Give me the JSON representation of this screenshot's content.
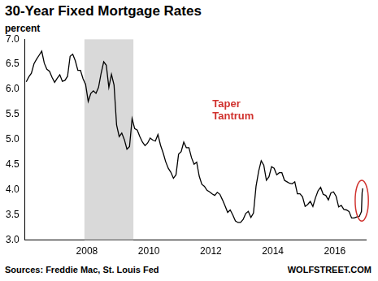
{
  "chart_data": {
    "type": "line",
    "title": "30-Year Fixed Mortgage Rates",
    "y_label": "percent",
    "source": "Sources: Freddie Mac, St. Louis Fed",
    "credit": "WOLFSTREET.COM",
    "annotations": [
      {
        "text": "Taper Tantrum"
      }
    ],
    "recession": [
      2007.92,
      2009.5
    ],
    "x": [
      2006.042,
      2006.125,
      2006.208,
      2006.292,
      2006.375,
      2006.458,
      2006.542,
      2006.625,
      2006.708,
      2006.792,
      2006.875,
      2006.958,
      2007.042,
      2007.125,
      2007.208,
      2007.292,
      2007.375,
      2007.458,
      2007.542,
      2007.625,
      2007.708,
      2007.792,
      2007.875,
      2007.958,
      2008.042,
      2008.125,
      2008.208,
      2008.292,
      2008.375,
      2008.458,
      2008.542,
      2008.625,
      2008.708,
      2008.792,
      2008.875,
      2008.958,
      2009.042,
      2009.125,
      2009.208,
      2009.292,
      2009.375,
      2009.458,
      2009.542,
      2009.625,
      2009.708,
      2009.792,
      2009.875,
      2009.958,
      2010.042,
      2010.125,
      2010.208,
      2010.292,
      2010.375,
      2010.458,
      2010.542,
      2010.625,
      2010.708,
      2010.792,
      2010.875,
      2010.958,
      2011.042,
      2011.125,
      2011.208,
      2011.292,
      2011.375,
      2011.458,
      2011.542,
      2011.625,
      2011.708,
      2011.792,
      2011.875,
      2011.958,
      2012.042,
      2012.125,
      2012.208,
      2012.292,
      2012.375,
      2012.458,
      2012.542,
      2012.625,
      2012.708,
      2012.792,
      2012.875,
      2012.958,
      2013.042,
      2013.125,
      2013.208,
      2013.292,
      2013.375,
      2013.458,
      2013.542,
      2013.625,
      2013.708,
      2013.792,
      2013.875,
      2013.958,
      2014.042,
      2014.125,
      2014.208,
      2014.292,
      2014.375,
      2014.458,
      2014.542,
      2014.625,
      2014.708,
      2014.792,
      2014.875,
      2014.958,
      2015.042,
      2015.125,
      2015.208,
      2015.292,
      2015.375,
      2015.458,
      2015.542,
      2015.625,
      2015.708,
      2015.792,
      2015.875,
      2015.958,
      2016.042,
      2016.125,
      2016.208,
      2016.292,
      2016.375,
      2016.458,
      2016.542,
      2016.625,
      2016.708,
      2016.79,
      2016.84,
      2016.86,
      2016.88,
      2016.9
    ],
    "values": [
      6.15,
      6.25,
      6.32,
      6.51,
      6.6,
      6.68,
      6.76,
      6.52,
      6.4,
      6.36,
      6.24,
      6.14,
      6.22,
      6.29,
      6.16,
      6.18,
      6.26,
      6.66,
      6.7,
      6.57,
      6.38,
      6.38,
      6.21,
      6.1,
      5.76,
      5.92,
      5.97,
      5.92,
      6.04,
      6.32,
      6.55,
      6.48,
      6.04,
      6.3,
      6.09,
      5.29,
      5.06,
      5.13,
      5.0,
      4.81,
      4.86,
      5.42,
      5.22,
      5.19,
      5.06,
      4.95,
      4.88,
      4.93,
      5.03,
      4.99,
      4.97,
      5.1,
      4.89,
      4.74,
      4.56,
      4.43,
      4.35,
      4.23,
      4.3,
      4.71,
      4.76,
      4.95,
      4.84,
      4.84,
      4.64,
      4.51,
      4.55,
      4.27,
      4.11,
      4.07,
      3.99,
      3.96,
      3.92,
      3.89,
      3.95,
      3.91,
      3.8,
      3.68,
      3.55,
      3.6,
      3.5,
      3.38,
      3.35,
      3.35,
      3.41,
      3.53,
      3.57,
      3.45,
      3.54,
      4.07,
      4.37,
      4.58,
      4.49,
      4.19,
      4.26,
      4.46,
      4.43,
      4.3,
      4.34,
      4.34,
      4.19,
      4.16,
      4.13,
      4.12,
      4.16,
      3.92,
      3.92,
      3.86,
      3.67,
      3.71,
      3.77,
      3.67,
      3.84,
      3.98,
      4.05,
      3.91,
      3.89,
      3.8,
      3.94,
      3.96,
      3.87,
      3.66,
      3.69,
      3.61,
      3.6,
      3.57,
      3.44,
      3.44,
      3.46,
      3.47,
      3.54,
      3.57,
      3.94,
      4.03
    ],
    "color": "#000000",
    "xlim": [
      2006,
      2017
    ],
    "xticks": [
      2008,
      2010,
      2012,
      2014,
      2016
    ],
    "ylim": [
      3,
      7
    ],
    "yticks": [
      {
        "value": 3,
        "label": "3.0"
      },
      3.5,
      {
        "value": 4,
        "label": "4.0"
      },
      4.5,
      {
        "value": 5,
        "label": "5.0"
      },
      5.5,
      {
        "value": 6,
        "label": "6.0"
      },
      6.5,
      {
        "value": 7,
        "label": "7.0"
      }
    ],
    "grid": false
  }
}
